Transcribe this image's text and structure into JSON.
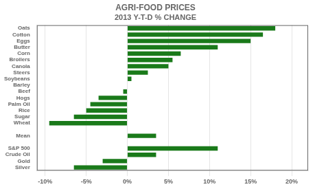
{
  "chart_data": {
    "type": "bar",
    "orientation": "horizontal",
    "title": "AGRI-FOOD PRICES",
    "subtitle": "2013 Y-T-D % CHANGE",
    "categories": [
      "Silver",
      "Gold",
      "Crude Oil",
      "S&P 500",
      null,
      "Mean",
      null,
      "Wheat",
      "Sugar",
      "Rice",
      "Palm Oil",
      "Hogs",
      "Beef",
      "Barley",
      "Soybeans",
      "Steers",
      "Canola",
      "Broilers",
      "Corn",
      "Butter",
      "Eggs",
      "Cotton",
      "Oats"
    ],
    "values": [
      -6.5,
      -3.0,
      3.5,
      11.0,
      0,
      3.5,
      0,
      -9.5,
      -6.5,
      -5.0,
      -4.5,
      -3.5,
      -0.5,
      0,
      0.5,
      2.5,
      5.0,
      5.5,
      6.5,
      11.0,
      15.0,
      16.5,
      18.0
    ],
    "color": "#1a7a1a",
    "xlim": [
      -11,
      22
    ],
    "xticks": [
      {
        "value": -10,
        "label": "-10%"
      },
      {
        "value": -5,
        "label": "-5%"
      },
      {
        "value": 0,
        "label": "0%"
      },
      {
        "value": 5,
        "label": "5%"
      },
      {
        "value": 10,
        "label": "10%"
      },
      {
        "value": 15,
        "label": "15%"
      },
      {
        "value": 20,
        "label": "20%"
      }
    ],
    "grid": true
  }
}
